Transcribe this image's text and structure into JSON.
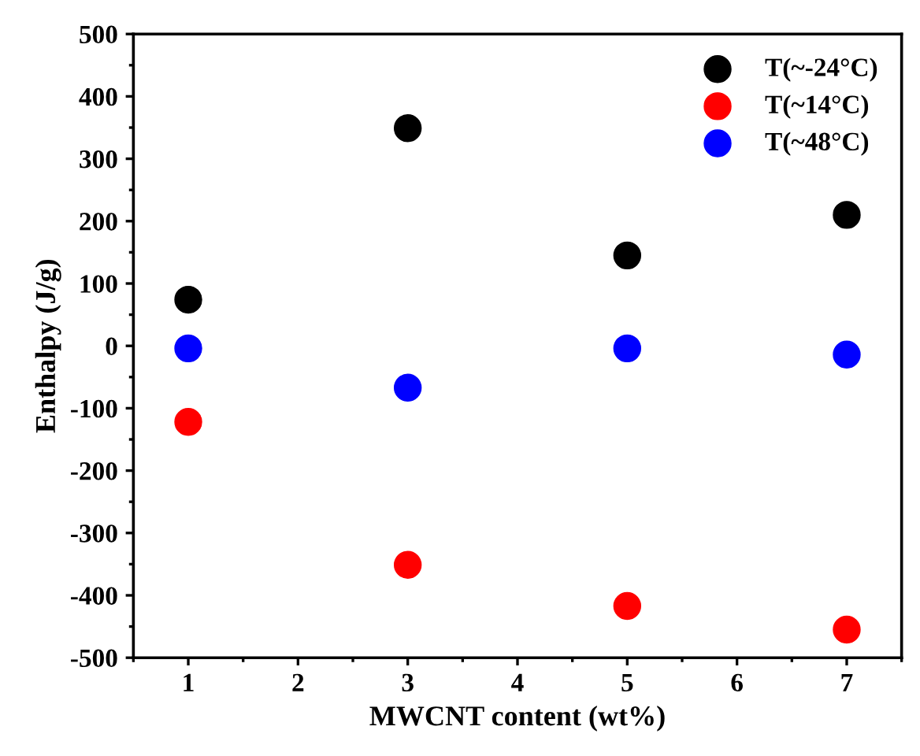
{
  "chart_data": {
    "type": "scatter",
    "xlabel": "MWCNT content (wt%)",
    "ylabel": "Enthalpy (J/g)",
    "x": [
      1,
      3,
      5,
      7
    ],
    "series": [
      {
        "name": "T(~-24°C)",
        "color": "#000000",
        "values": [
          74,
          349,
          145,
          210
        ]
      },
      {
        "name": "T(~14°C)",
        "color": "#ff0000",
        "values": [
          -122,
          -351,
          -417,
          -455
        ]
      },
      {
        "name": "T(~48°C)",
        "color": "#0000ff",
        "values": [
          -4,
          -67,
          -4,
          -14
        ]
      }
    ],
    "xlim": [
      0.5,
      7.5
    ],
    "xticks": [
      1,
      2,
      3,
      4,
      5,
      6,
      7
    ],
    "ylim": [
      -500,
      500
    ],
    "yticks": [
      -500,
      -400,
      -300,
      -200,
      -100,
      0,
      100,
      200,
      300,
      400,
      500
    ],
    "marker": "circle",
    "legend": "top right",
    "grid": false
  }
}
